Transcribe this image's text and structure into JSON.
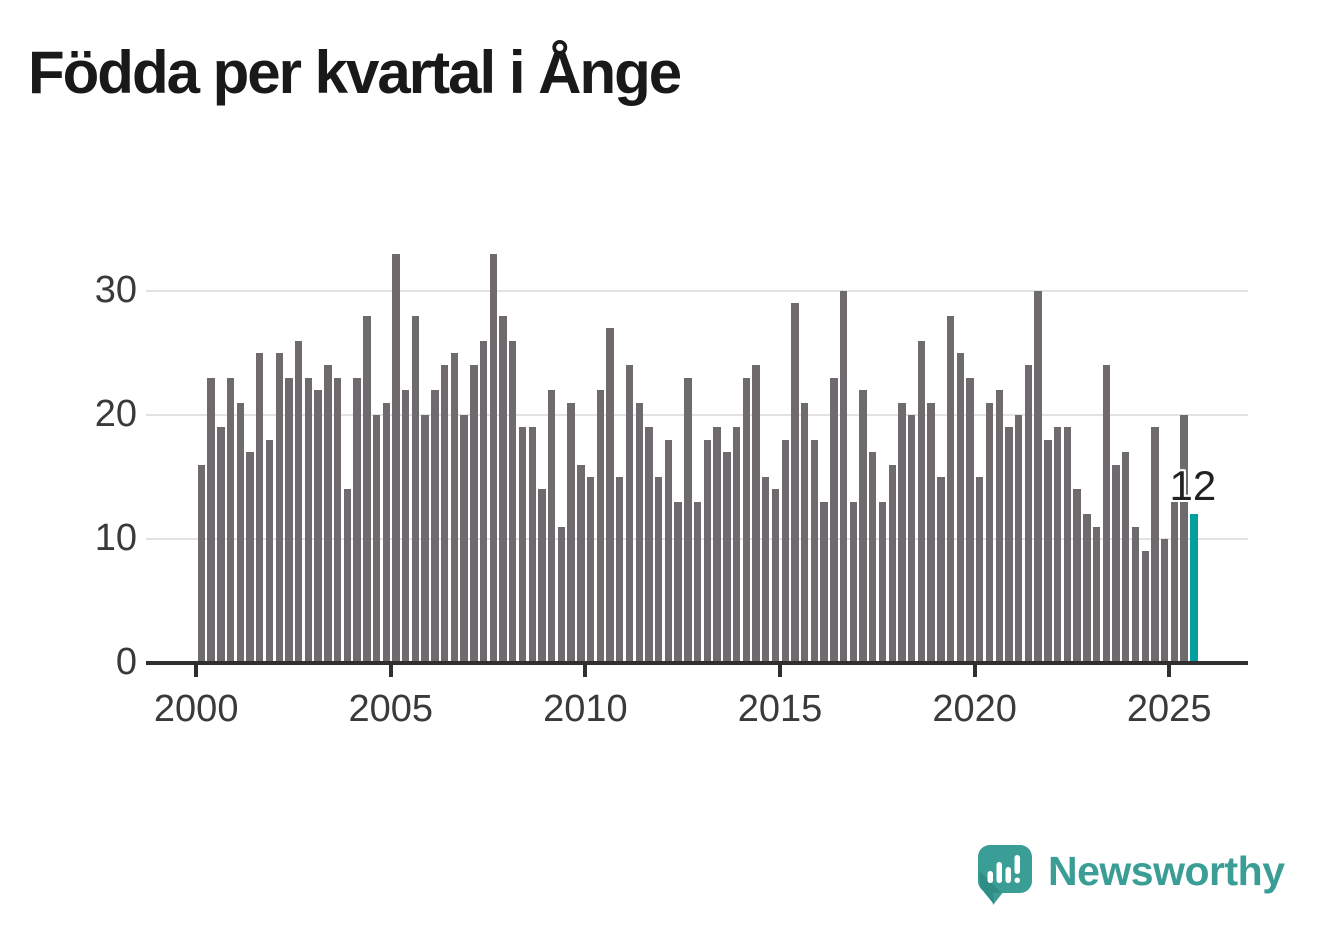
{
  "title": "Födda per kvartal i Ånge",
  "colors": {
    "bar": "#6e6a6e",
    "highlight": "#00a0a0",
    "axis": "#2f2f2f",
    "grid": "#e3e3e3",
    "tick_label": "#3a3a3a",
    "title": "#191919",
    "brand": "#3a9e96"
  },
  "branding": {
    "name": "Newsworthy",
    "icon": "newsworthy-speech-bubble-chart-icon"
  },
  "chart_data": {
    "type": "bar",
    "title": "Födda per kvartal i Ånge",
    "period": {
      "start": "2000 Q1",
      "end": "2025 Q3",
      "frequency": "quarterly"
    },
    "values": [
      16,
      23,
      19,
      23,
      21,
      17,
      25,
      18,
      25,
      23,
      26,
      23,
      22,
      24,
      23,
      14,
      23,
      28,
      20,
      21,
      33,
      22,
      28,
      20,
      22,
      24,
      25,
      20,
      24,
      26,
      33,
      28,
      26,
      19,
      19,
      14,
      22,
      11,
      21,
      16,
      15,
      22,
      27,
      15,
      24,
      21,
      19,
      15,
      18,
      13,
      23,
      13,
      18,
      19,
      17,
      19,
      23,
      24,
      15,
      14,
      18,
      29,
      21,
      18,
      13,
      23,
      30,
      13,
      22,
      17,
      13,
      16,
      21,
      20,
      26,
      21,
      15,
      28,
      25,
      23,
      15,
      21,
      22,
      19,
      20,
      24,
      30,
      18,
      19,
      19,
      14,
      12,
      11,
      24,
      16,
      17,
      11,
      9,
      19,
      10,
      13,
      20,
      12
    ],
    "highlight": {
      "index": 102,
      "value": 12,
      "label": "12",
      "color": "#00a0a0"
    },
    "yticks": [
      0,
      10,
      20,
      30
    ],
    "xticks": [
      {
        "label": "2000",
        "index": 0
      },
      {
        "label": "2005",
        "index": 20
      },
      {
        "label": "2010",
        "index": 40
      },
      {
        "label": "2015",
        "index": 60
      },
      {
        "label": "2020",
        "index": 80
      },
      {
        "label": "2025",
        "index": 100
      }
    ],
    "ylim": [
      0,
      33
    ],
    "grid": "horizontal",
    "legend": "none"
  }
}
